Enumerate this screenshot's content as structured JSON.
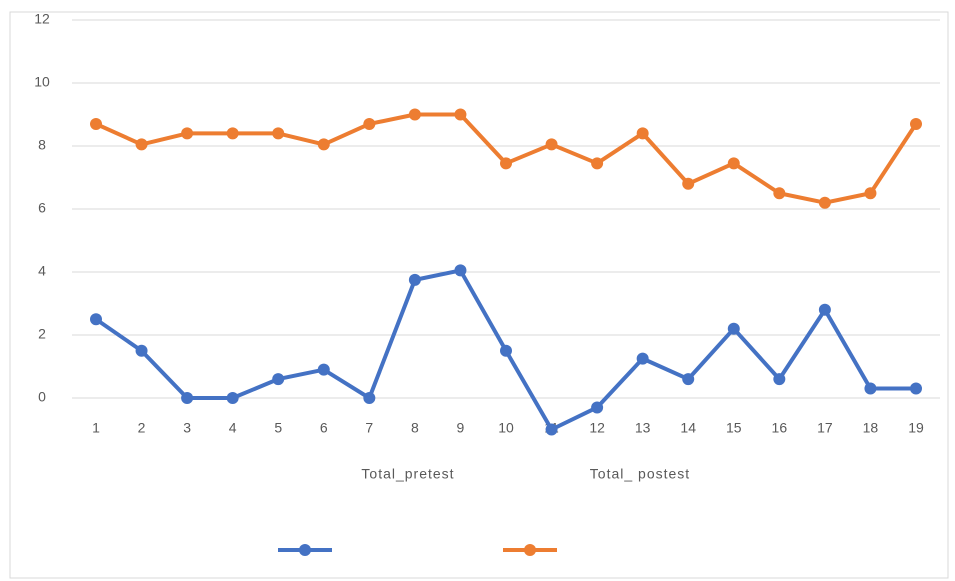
{
  "chart_data": {
    "type": "line",
    "x": [
      1,
      2,
      3,
      4,
      5,
      6,
      7,
      8,
      9,
      10,
      11,
      12,
      13,
      14,
      15,
      16,
      17,
      18,
      19
    ],
    "xlim": [
      1,
      19
    ],
    "series": [
      {
        "name": "Total_pretest",
        "color": "#4472c4",
        "values": [
          2.5,
          1.5,
          0,
          0,
          0.6,
          0.9,
          0,
          3.75,
          4.05,
          1.5,
          -1,
          -0.3,
          1.25,
          0.6,
          2.2,
          0.6,
          2.8,
          0.3,
          0.3
        ]
      },
      {
        "name": "Total_ postest",
        "color": "#ed7d31",
        "values": [
          8.7,
          8.05,
          8.4,
          8.4,
          8.4,
          8.05,
          8.7,
          9.0,
          9.0,
          7.45,
          8.05,
          7.45,
          8.4,
          6.8,
          7.45,
          6.5,
          6.2,
          6.5,
          8.7
        ]
      }
    ],
    "ylim": [
      -2,
      12
    ],
    "yticks": [
      0,
      2,
      4,
      6,
      8,
      10,
      12
    ],
    "grid": true
  }
}
